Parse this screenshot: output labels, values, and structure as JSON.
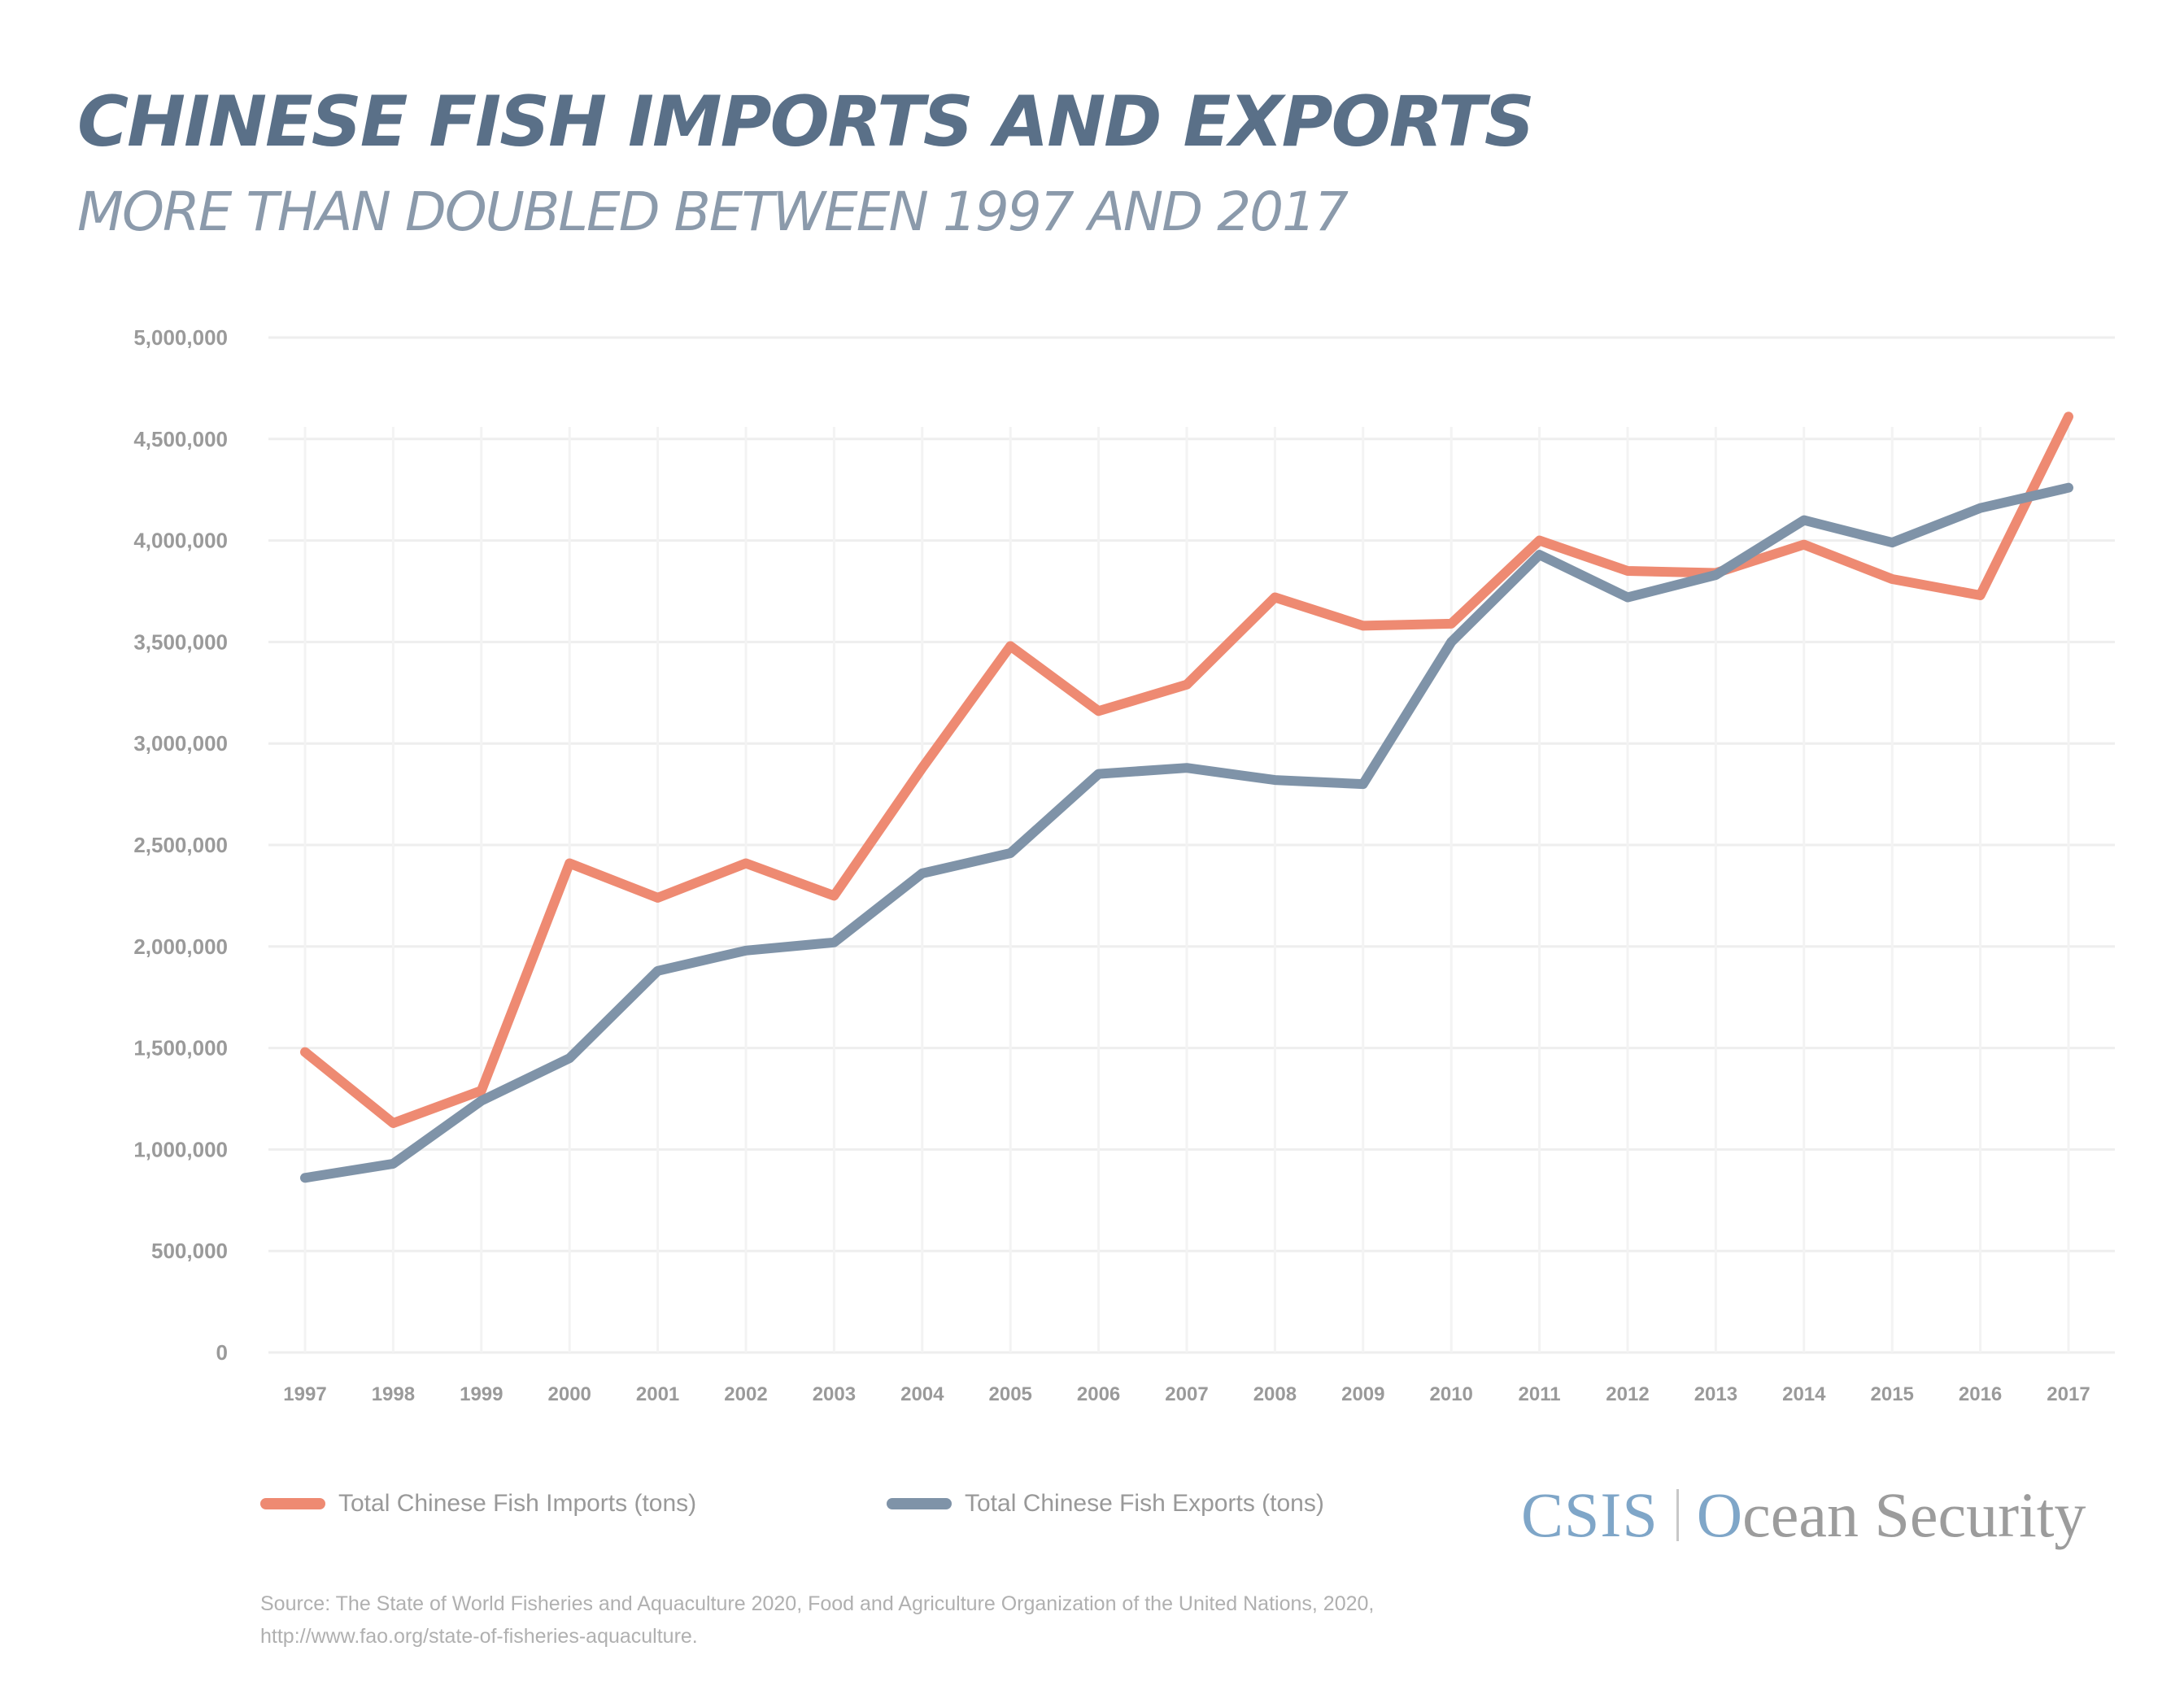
{
  "header": {
    "title": "CHINESE FISH IMPORTS AND EXPORTS",
    "subtitle": "MORE THAN DOUBLED BETWEEN 1997 AND 2017"
  },
  "legend": {
    "imports_label": "Total Chinese Fish Imports (tons)",
    "exports_label": "Total Chinese Fish Exports (tons)"
  },
  "source": "Source: The State of World Fisheries and Aquaculture 2020, Food and Agriculture Organization of the United Nations, 2020, http://www.fao.org/state-of-fisheries-aquaculture.",
  "logo": {
    "org": "CSIS",
    "program_initial": "O",
    "program_rest": "cean Security"
  },
  "colors": {
    "imports": "#ee8a72",
    "exports": "#7f93a8",
    "title": "#5a7088",
    "gridline": "#eeeeee"
  },
  "chart_data": {
    "type": "line",
    "title": "CHINESE FISH IMPORTS AND EXPORTS",
    "subtitle": "MORE THAN DOUBLED BETWEEN 1997 AND 2017",
    "xlabel": "",
    "ylabel": "",
    "x": [
      1997,
      1998,
      1999,
      2000,
      2001,
      2002,
      2003,
      2004,
      2005,
      2006,
      2007,
      2008,
      2009,
      2010,
      2011,
      2012,
      2013,
      2014,
      2015,
      2016,
      2017
    ],
    "x_tick_labels": [
      "1997",
      "1998",
      "1999",
      "2000",
      "2001",
      "2002",
      "2003",
      "2004",
      "2005",
      "2006",
      "2007",
      "2008",
      "2009",
      "2010",
      "2011",
      "2012",
      "2013",
      "2014",
      "2015",
      "2016",
      "2017"
    ],
    "y_ticks": [
      0,
      500000,
      1000000,
      1500000,
      2000000,
      2500000,
      3000000,
      3500000,
      4000000,
      4500000,
      5000000
    ],
    "y_tick_labels": [
      "0",
      "500,000",
      "1,000,000",
      "1,500,000",
      "2,000,000",
      "2,500,000",
      "3,000,000",
      "3,500,000",
      "4,000,000",
      "4,500,000",
      "5,000,000"
    ],
    "ylim": [
      0,
      5000000
    ],
    "grid": true,
    "legend_position": "bottom-left",
    "series": [
      {
        "name": "Total Chinese Fish Imports (tons)",
        "color": "#ee8a72",
        "values": [
          1480000,
          1130000,
          1290000,
          2410000,
          2240000,
          2410000,
          2250000,
          2880000,
          3480000,
          3160000,
          3290000,
          3720000,
          3580000,
          3590000,
          4000000,
          3850000,
          3840000,
          3980000,
          3810000,
          3730000,
          4610000
        ]
      },
      {
        "name": "Total Chinese Fish Exports (tons)",
        "color": "#7f93a8",
        "values": [
          860000,
          930000,
          1240000,
          1450000,
          1880000,
          1980000,
          2020000,
          2360000,
          2460000,
          2850000,
          2880000,
          2820000,
          2800000,
          3500000,
          3930000,
          3720000,
          3830000,
          4100000,
          3990000,
          4160000,
          4260000
        ]
      }
    ]
  }
}
